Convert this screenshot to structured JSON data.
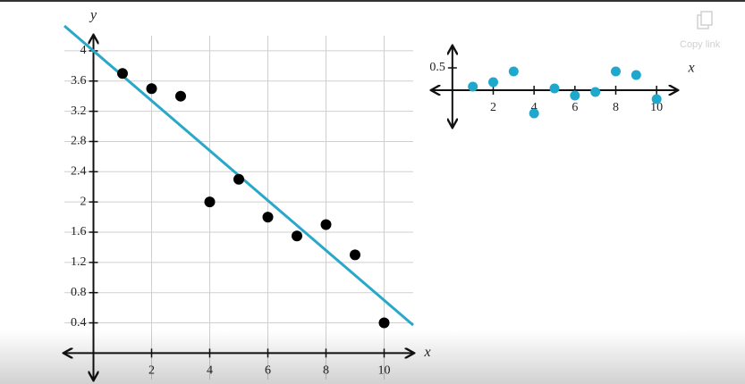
{
  "chart_data": [
    {
      "type": "scatter",
      "x_label": "x",
      "y_label": "y",
      "x": [
        1,
        2,
        3,
        4,
        5,
        6,
        7,
        8,
        9,
        10
      ],
      "values": [
        3.7,
        3.5,
        3.4,
        2.0,
        2.3,
        1.8,
        1.55,
        1.7,
        1.3,
        0.4
      ],
      "color": "#000000",
      "fit": {
        "intercept": 4,
        "slope": -0.33,
        "color": "#29a8c9"
      },
      "xlim": [
        -1,
        11
      ],
      "ylim": [
        -0.35,
        4.2
      ],
      "xticks": [
        2,
        4,
        6,
        8,
        10
      ],
      "yticks": [
        0.4,
        0.8,
        1.2,
        1.6,
        2,
        2.4,
        2.8,
        3.2,
        3.6,
        4
      ],
      "grid": true
    },
    {
      "type": "scatter",
      "x_label": "x",
      "x": [
        1,
        2,
        3,
        4,
        5,
        6,
        7,
        8,
        9,
        10
      ],
      "values": [
        0.08,
        0.18,
        0.42,
        -0.52,
        0.04,
        -0.12,
        -0.04,
        0.42,
        0.34,
        -0.2
      ],
      "color": "#1fa8cc",
      "xlim": [
        -1,
        11
      ],
      "ylim": [
        -0.82,
        0.98
      ],
      "xticks": [
        2,
        4,
        6,
        8,
        10
      ],
      "yticks": [
        0.5
      ],
      "grid": false
    }
  ],
  "ui": {
    "copy_link": "Copy link"
  }
}
